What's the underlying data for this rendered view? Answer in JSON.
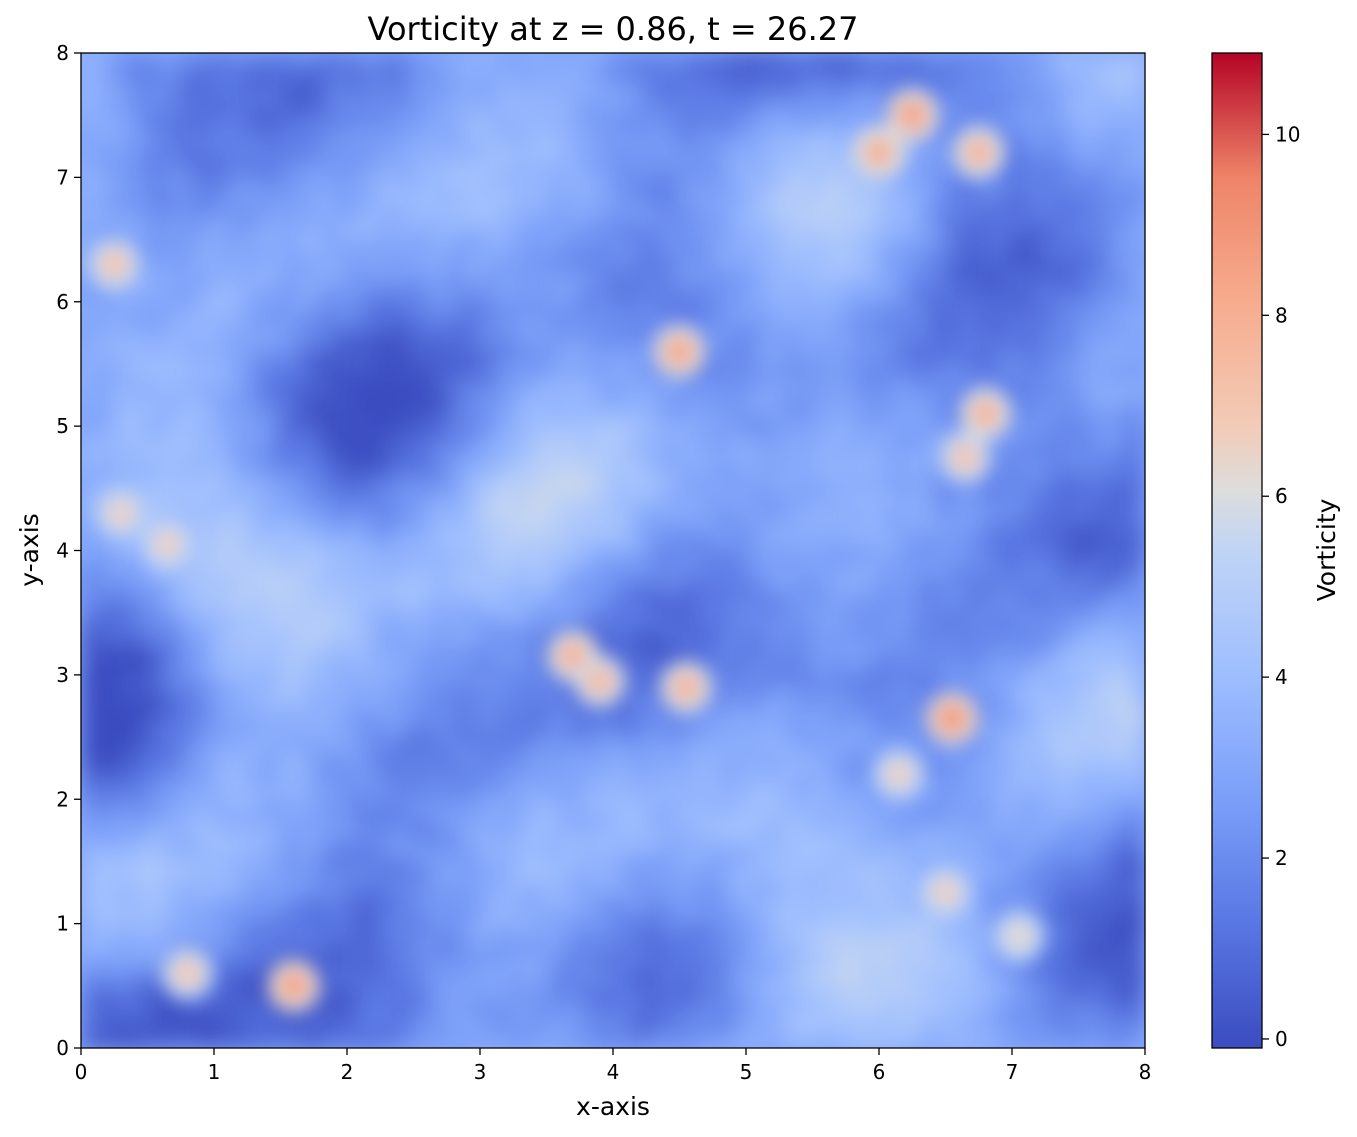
{
  "chart_data": {
    "type": "heatmap",
    "title": "Vorticity at z = 0.86, t = 26.27",
    "xlabel": "x-axis",
    "ylabel": "y-axis",
    "xlim": [
      0,
      8
    ],
    "ylim": [
      0,
      8
    ],
    "xticks": [
      "0",
      "1",
      "2",
      "3",
      "4",
      "5",
      "6",
      "7",
      "8"
    ],
    "yticks": [
      "0",
      "1",
      "2",
      "3",
      "4",
      "5",
      "6",
      "7",
      "8"
    ],
    "colorbar": {
      "label": "Vorticity",
      "colormap": "coolwarm",
      "range": [
        -0.1,
        10.9
      ],
      "ticks": [
        "0",
        "2",
        "4",
        "6",
        "8",
        "10"
      ],
      "low_color": "#3b4cc0",
      "mid_color": "#dddddd",
      "high_color": "#b40426"
    },
    "field": {
      "background_level": 2.5,
      "notable_peaks": [
        {
          "x": 6.25,
          "y": 7.5,
          "value": 8.5
        },
        {
          "x": 6.0,
          "y": 7.2,
          "value": 8.0
        },
        {
          "x": 6.75,
          "y": 7.2,
          "value": 7.8
        },
        {
          "x": 0.25,
          "y": 6.3,
          "value": 7.0
        },
        {
          "x": 4.5,
          "y": 5.6,
          "value": 8.3
        },
        {
          "x": 6.8,
          "y": 5.1,
          "value": 7.8
        },
        {
          "x": 6.65,
          "y": 4.75,
          "value": 7.0
        },
        {
          "x": 0.3,
          "y": 4.3,
          "value": 6.5
        },
        {
          "x": 0.65,
          "y": 4.05,
          "value": 6.5
        },
        {
          "x": 3.7,
          "y": 3.15,
          "value": 8.0
        },
        {
          "x": 3.9,
          "y": 2.95,
          "value": 7.5
        },
        {
          "x": 4.55,
          "y": 2.9,
          "value": 7.8
        },
        {
          "x": 6.55,
          "y": 2.65,
          "value": 8.8
        },
        {
          "x": 6.15,
          "y": 2.2,
          "value": 6.5
        },
        {
          "x": 6.5,
          "y": 1.25,
          "value": 6.5
        },
        {
          "x": 1.6,
          "y": 0.5,
          "value": 8.5
        },
        {
          "x": 0.8,
          "y": 0.6,
          "value": 6.8
        },
        {
          "x": 7.05,
          "y": 0.9,
          "value": 6.2
        }
      ]
    }
  }
}
